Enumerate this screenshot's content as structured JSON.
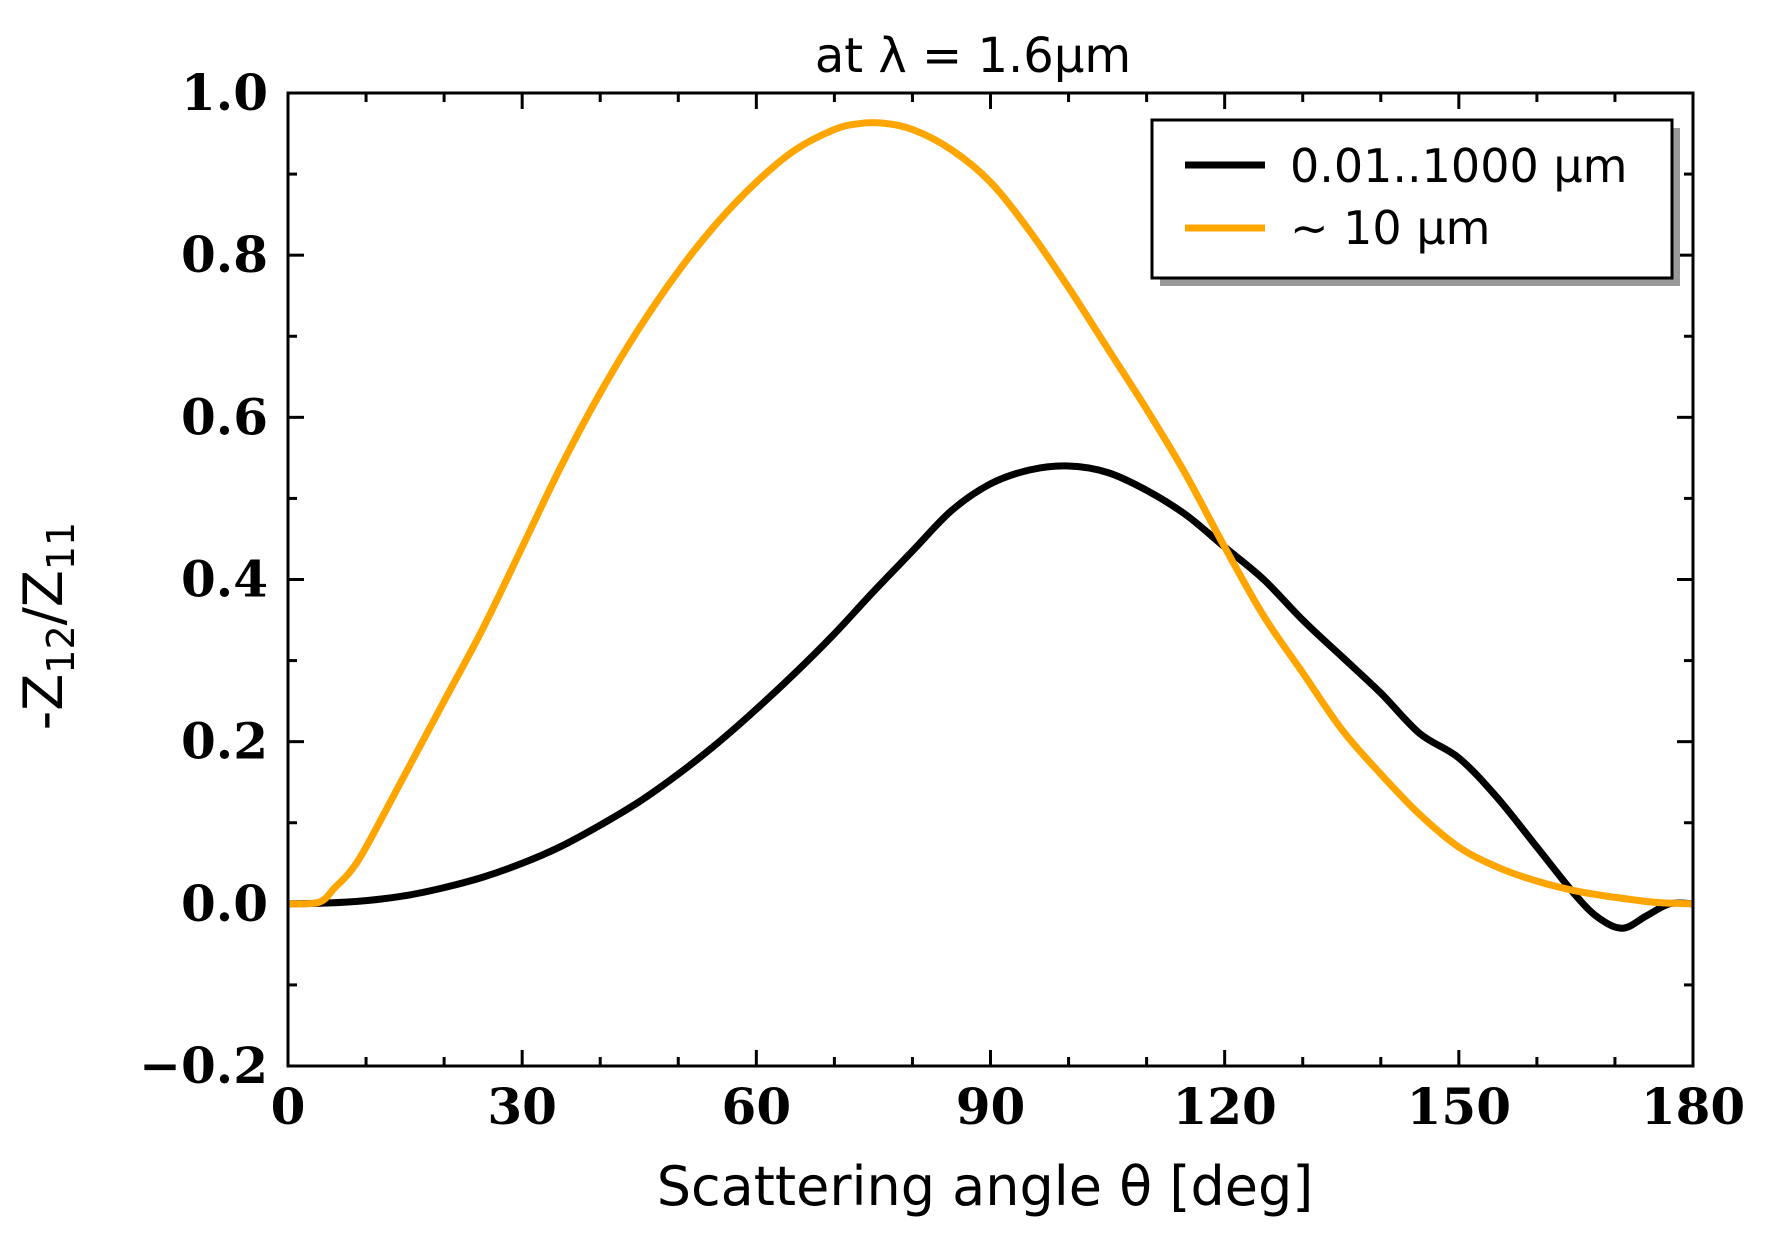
{
  "chart_data": {
    "type": "line",
    "title": "at λ = 1.6μm",
    "xlabel": "Scattering angle θ [deg]",
    "ylabel": "-Z12/Z11",
    "ylabel_parts": {
      "prefix": "-Z",
      "sub1": "12",
      "mid": "/Z",
      "sub2": "11"
    },
    "xlim": [
      0,
      180
    ],
    "ylim": [
      -0.2,
      1.0
    ],
    "xticks": [
      0,
      30,
      60,
      90,
      120,
      150,
      180
    ],
    "xtick_labels": [
      "0",
      "30",
      "60",
      "90",
      "120",
      "150",
      "180"
    ],
    "yticks": [
      -0.2,
      0.0,
      0.2,
      0.4,
      0.6,
      0.8,
      1.0
    ],
    "ytick_labels": [
      "−0.2",
      "0.0",
      "0.2",
      "0.4",
      "0.6",
      "0.8",
      "1.0"
    ],
    "grid": false,
    "legend_position": "top-right",
    "series": [
      {
        "name": "0.01..1000 μm",
        "color": "#000000",
        "x": [
          0,
          5,
          10,
          15,
          20,
          25,
          30,
          35,
          40,
          45,
          50,
          55,
          60,
          65,
          70,
          75,
          80,
          85,
          90,
          95,
          100,
          105,
          110,
          115,
          120,
          125,
          130,
          135,
          140,
          145,
          150,
          155,
          160,
          165,
          168,
          171,
          174,
          177,
          180
        ],
        "y": [
          0.0,
          0.001,
          0.004,
          0.01,
          0.02,
          0.033,
          0.05,
          0.071,
          0.097,
          0.126,
          0.16,
          0.198,
          0.24,
          0.285,
          0.333,
          0.385,
          0.435,
          0.485,
          0.518,
          0.535,
          0.54,
          0.532,
          0.51,
          0.48,
          0.44,
          0.4,
          0.35,
          0.305,
          0.26,
          0.21,
          0.18,
          0.13,
          0.07,
          0.01,
          -0.018,
          -0.03,
          -0.015,
          0.0,
          0.0
        ]
      },
      {
        "name": "∼ 10 μm",
        "color": "#ffa500",
        "x": [
          0,
          4,
          6,
          8,
          10,
          15,
          20,
          25,
          30,
          35,
          40,
          45,
          50,
          55,
          60,
          65,
          70,
          73,
          76,
          80,
          85,
          90,
          95,
          100,
          105,
          110,
          115,
          120,
          125,
          130,
          135,
          140,
          145,
          150,
          155,
          160,
          165,
          170,
          175,
          180
        ],
        "y": [
          0.0,
          0.002,
          0.02,
          0.04,
          0.07,
          0.16,
          0.25,
          0.34,
          0.44,
          0.54,
          0.63,
          0.71,
          0.78,
          0.84,
          0.89,
          0.93,
          0.955,
          0.962,
          0.963,
          0.955,
          0.93,
          0.89,
          0.83,
          0.76,
          0.685,
          0.61,
          0.53,
          0.44,
          0.355,
          0.285,
          0.215,
          0.16,
          0.11,
          0.07,
          0.045,
          0.028,
          0.016,
          0.008,
          0.002,
          0.0
        ]
      }
    ]
  }
}
